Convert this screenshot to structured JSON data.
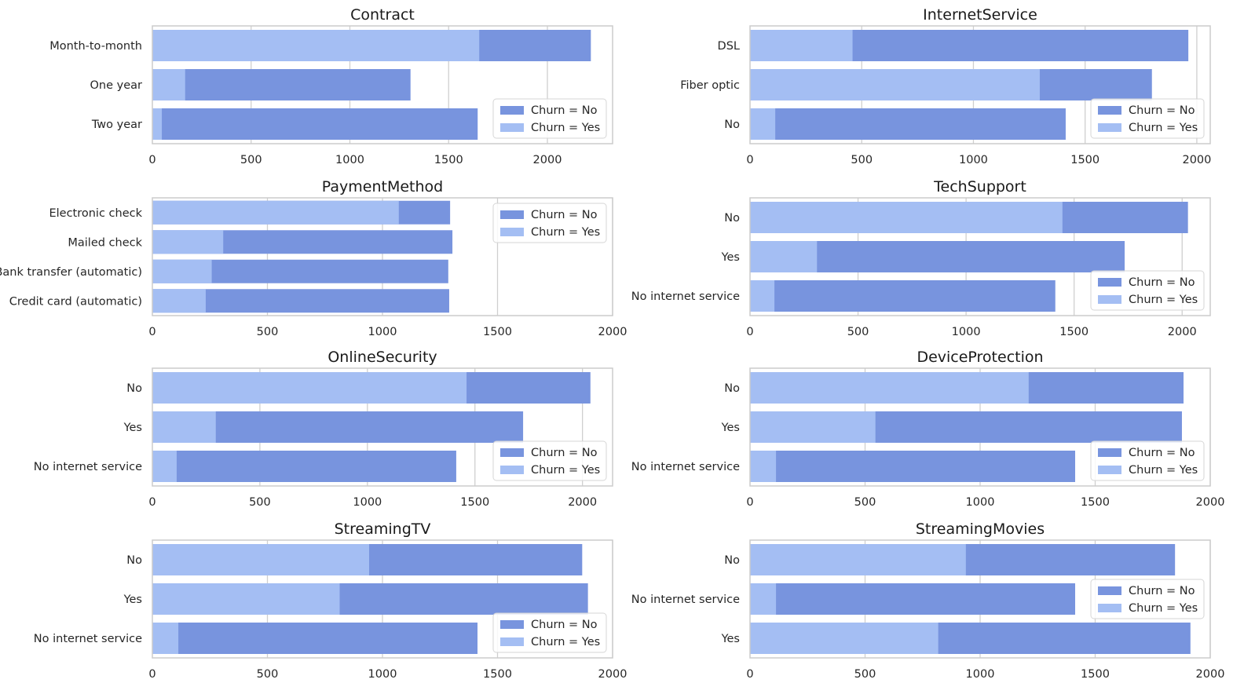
{
  "colors": {
    "no": "#7894de",
    "yes": "#a4bef3",
    "grid": "#cfcfcf",
    "frame": "#cccccc"
  },
  "chart_data": [
    {
      "type": "bar",
      "title": "Contract",
      "categories": [
        "Month-to-month",
        "One year",
        "Two year"
      ],
      "series": [
        {
          "name": "Churn = No",
          "values": [
            2220,
            1307,
            1647
          ]
        },
        {
          "name": "Churn = Yes",
          "values": [
            1655,
            166,
            48
          ]
        }
      ],
      "xlim": [
        0,
        2330
      ],
      "xticks": [
        0,
        500,
        1000,
        1500,
        2000
      ],
      "legend": "lower right"
    },
    {
      "type": "bar",
      "title": "InternetService",
      "categories": [
        "DSL",
        "Fiber optic",
        "No"
      ],
      "series": [
        {
          "name": "Churn = No",
          "values": [
            1962,
            1799,
            1413
          ]
        },
        {
          "name": "Churn = Yes",
          "values": [
            459,
            1297,
            113
          ]
        }
      ],
      "xlim": [
        0,
        2060
      ],
      "xticks": [
        0,
        500,
        1000,
        1500,
        2000
      ],
      "legend": "lower right"
    },
    {
      "type": "bar",
      "title": "PaymentMethod",
      "categories": [
        "Electronic check",
        "Mailed check",
        "Bank transfer (automatic)",
        "Credit card (automatic)"
      ],
      "series": [
        {
          "name": "Churn = No",
          "values": [
            1294,
            1304,
            1286,
            1290
          ]
        },
        {
          "name": "Churn = Yes",
          "values": [
            1071,
            308,
            258,
            232
          ]
        }
      ],
      "xlim": [
        0,
        2000
      ],
      "xticks": [
        0,
        500,
        1000,
        1500,
        2000
      ],
      "legend": "upper right"
    },
    {
      "type": "bar",
      "title": "TechSupport",
      "categories": [
        "No",
        "Yes",
        "No internet service"
      ],
      "series": [
        {
          "name": "Churn = No",
          "values": [
            2027,
            1734,
            1413
          ]
        },
        {
          "name": "Churn = Yes",
          "values": [
            1446,
            310,
            113
          ]
        }
      ],
      "xlim": [
        0,
        2130
      ],
      "xticks": [
        0,
        500,
        1000,
        1500,
        2000
      ],
      "legend": "lower right"
    },
    {
      "type": "bar",
      "title": "OnlineSecurity",
      "categories": [
        "No",
        "Yes",
        "No internet service"
      ],
      "series": [
        {
          "name": "Churn = No",
          "values": [
            2037,
            1724,
            1413
          ]
        },
        {
          "name": "Churn = Yes",
          "values": [
            1461,
            295,
            113
          ]
        }
      ],
      "xlim": [
        0,
        2140
      ],
      "xticks": [
        0,
        500,
        1000,
        1500,
        2000
      ],
      "legend": "lower right"
    },
    {
      "type": "bar",
      "title": "DeviceProtection",
      "categories": [
        "No",
        "Yes",
        "No internet service"
      ],
      "series": [
        {
          "name": "Churn = No",
          "values": [
            1884,
            1877,
            1413
          ]
        },
        {
          "name": "Churn = Yes",
          "values": [
            1211,
            545,
            113
          ]
        }
      ],
      "xlim": [
        0,
        2000
      ],
      "xticks": [
        0,
        500,
        1000,
        1500,
        2000
      ],
      "legend": "lower right"
    },
    {
      "type": "bar",
      "title": "StreamingTV",
      "categories": [
        "No",
        "Yes",
        "No internet service"
      ],
      "series": [
        {
          "name": "Churn = No",
          "values": [
            1868,
            1893,
            1413
          ]
        },
        {
          "name": "Churn = Yes",
          "values": [
            942,
            814,
            113
          ]
        }
      ],
      "xlim": [
        0,
        2000
      ],
      "xticks": [
        0,
        500,
        1000,
        1500,
        2000
      ],
      "legend": "lower right"
    },
    {
      "type": "bar",
      "title": "StreamingMovies",
      "categories": [
        "No",
        "No internet service",
        "Yes"
      ],
      "series": [
        {
          "name": "Churn = No",
          "values": [
            1847,
            1413,
            1914
          ]
        },
        {
          "name": "Churn = Yes",
          "values": [
            938,
            113,
            818
          ]
        }
      ],
      "xlim": [
        0,
        2000
      ],
      "xticks": [
        0,
        500,
        1000,
        1500,
        2000
      ],
      "legend": "center right"
    }
  ]
}
